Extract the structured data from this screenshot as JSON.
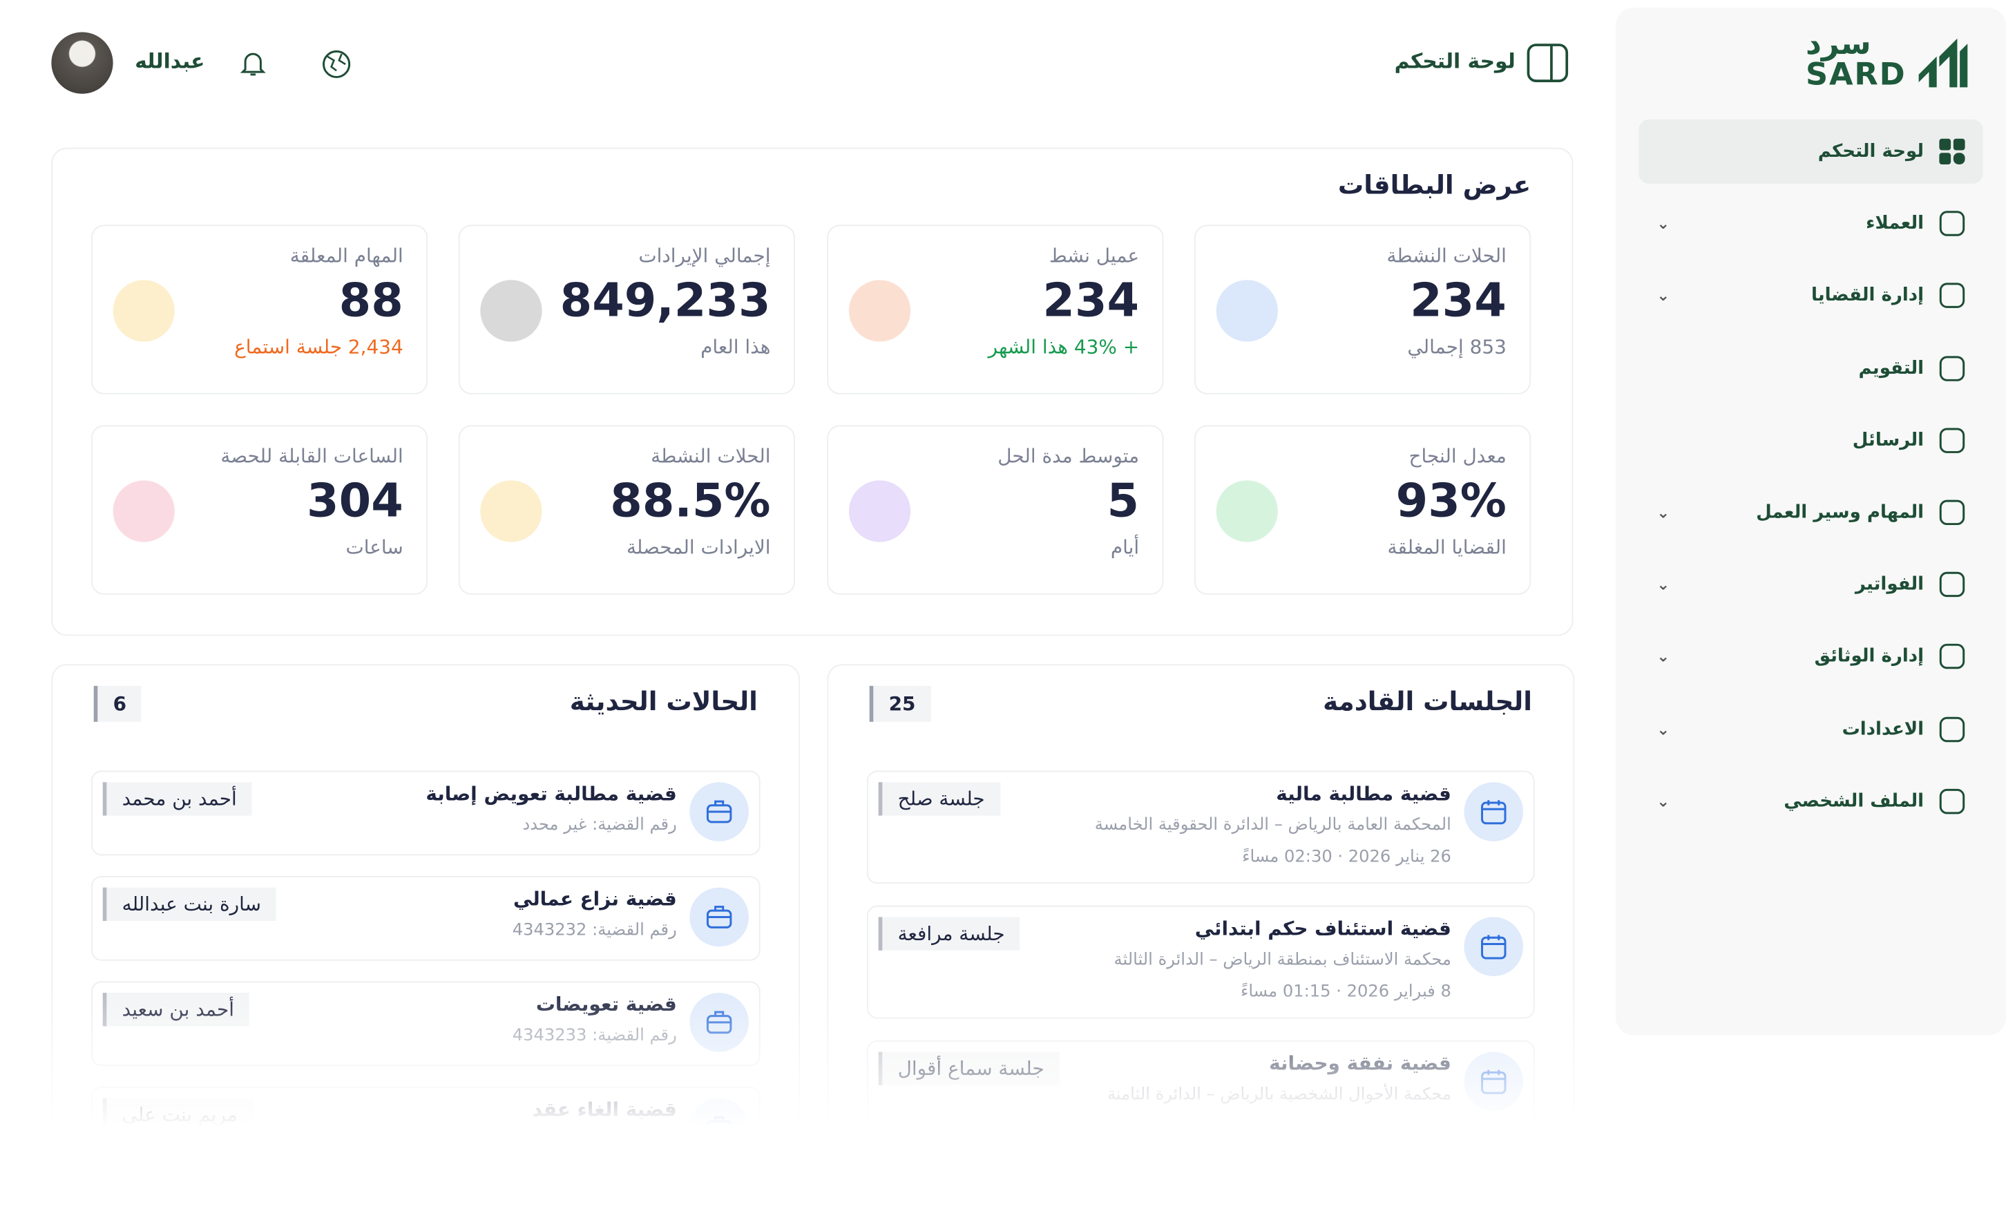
{
  "header": {
    "title": "لوحة التحكم",
    "user": "عبدالله"
  },
  "sidebar": {
    "logo": {
      "arabic": "سرد",
      "latin": "SARD"
    },
    "items": [
      {
        "label": "لوحة التحكم",
        "active": true,
        "expandable": false
      },
      {
        "label": "العملاء",
        "active": false,
        "expandable": true
      },
      {
        "label": "إدارة القضايا",
        "active": false,
        "expandable": true
      },
      {
        "label": "التقويم",
        "active": false,
        "expandable": false
      },
      {
        "label": "الرسائل",
        "active": false,
        "expandable": false
      },
      {
        "label": "المهام وسير العمل",
        "active": false,
        "expandable": true
      },
      {
        "label": "الفواتير",
        "active": false,
        "expandable": true
      },
      {
        "label": "إدارة الوثائق",
        "active": false,
        "expandable": true
      },
      {
        "label": "الاعدادات",
        "active": false,
        "expandable": true
      },
      {
        "label": "الملف الشخصي",
        "active": false,
        "expandable": true
      }
    ]
  },
  "cards": {
    "title": "عرض البطاقات",
    "items": [
      {
        "label": "الحلات النشطة",
        "value": "234",
        "sub": "853 إجمالي",
        "color": "#dbe8fb"
      },
      {
        "label": "عميل نشط",
        "value": "234",
        "sub": "+ 43% هذا الشهر",
        "color": "#fbe0d2"
      },
      {
        "label": "إجمالي الإيرادات",
        "value": "849,233",
        "sub": "هذا العام",
        "color": "#d9d9da"
      },
      {
        "label": "المهام المعلقة",
        "value": "88",
        "sub": "2,434 جلسة استماع",
        "color": "#fdefcc"
      },
      {
        "label": "معدل النجاح",
        "value": "93%",
        "sub": "القضايا المغلقة",
        "color": "#d6f3de"
      },
      {
        "label": "متوسط مدة الحل",
        "value": "5",
        "sub": "أيام",
        "color": "#e8ddfb"
      },
      {
        "label": "الحلات النشطة",
        "value": "88.5%",
        "sub": "الايرادات المحصلة",
        "color": "#fdefcc"
      },
      {
        "label": "الساعات القابلة للحصة",
        "value": "304",
        "sub": "ساعات",
        "color": "#fbdbe3"
      }
    ]
  },
  "sessions": {
    "title": "الجلسات القادمة",
    "count": "25",
    "items": [
      {
        "title": "قضية مطالبة مالية",
        "court": "المحكمة العامة بالرياض – الدائرة الحقوقية الخامسة",
        "date": "26 يناير 2026 · 02:30 مساءً",
        "tag": "جلسة صلح"
      },
      {
        "title": "قضية استئناف حكم ابتدائي",
        "court": "محكمة الاستئناف بمنطقة الرياض – الدائرة الثالثة",
        "date": "8 فبراير 2026 · 01:15 مساءً",
        "tag": "جلسة مرافعة"
      },
      {
        "title": "قضية نفقة وحضانة",
        "court": "محكمة الأحوال الشخصية بالرياض – الدائرة الثامنة",
        "tag": "جلسة سماع أقوال"
      }
    ]
  },
  "cases": {
    "title": "الحالات الحديثة",
    "count": "6",
    "items": [
      {
        "title": "قضية مطالبة تعويض إصابة",
        "number": "رقم القضية: غير محدد",
        "client": "أحمد بن محمد"
      },
      {
        "title": "قضية نزاع عمالي",
        "number": "رقم القضية: 4343232",
        "client": "سارة بنت عبدالله"
      },
      {
        "title": "قضية تعويضات",
        "number": "رقم القضية: 4343233",
        "client": "أحمد بن سعيد"
      },
      {
        "title": "قضية الغاء عقد",
        "client": "مريم بنت علي"
      }
    ]
  }
}
